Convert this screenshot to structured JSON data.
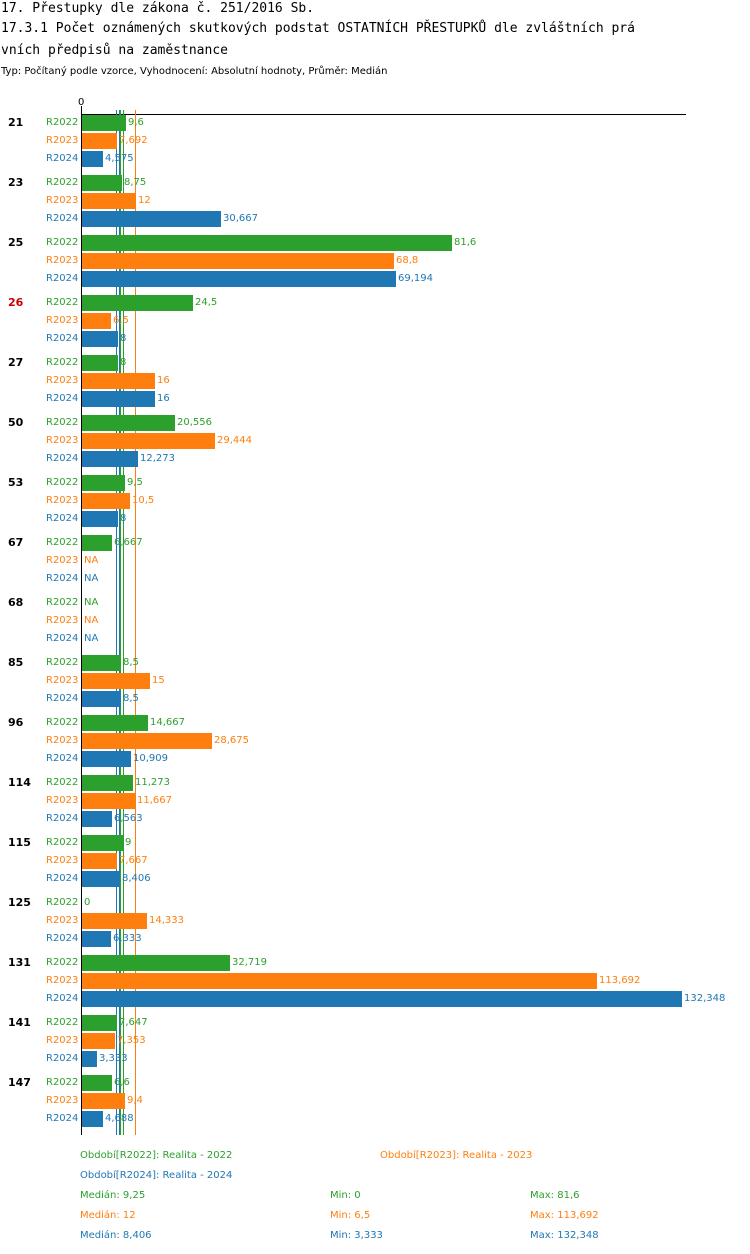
{
  "header": {
    "title1": "17. Přestupky dle zákona č. 251/2016 Sb.",
    "title2": "17.3.1 Počet oznámených skutkových podstat OSTATNÍCH PŘESTUPKŮ dle zvláštních prá",
    "title3": "vních předpisů na zaměstnance",
    "subtitle": "Typ: Počítaný podle vzorce, Vyhodnocení: Absolutní hodnoty, Průměr: Medián"
  },
  "colors": {
    "R2022": "#2ca02c",
    "R2023": "#ff7f0e",
    "R2024": "#1f77b4",
    "highlight": "#cc0000"
  },
  "chart_data": {
    "type": "bar",
    "orientation": "horizontal",
    "axis_zero_label": "0",
    "xlim": [
      0,
      132.348
    ],
    "series_names": [
      "R2022",
      "R2023",
      "R2024"
    ],
    "groups": [
      {
        "label": "21",
        "highlight": false,
        "values": [
          9.6,
          7.692,
          4.575
        ],
        "labels": [
          "9,6",
          "7,692",
          "4,575"
        ]
      },
      {
        "label": "23",
        "highlight": false,
        "values": [
          8.75,
          12,
          30.667
        ],
        "labels": [
          "8,75",
          "12",
          "30,667"
        ]
      },
      {
        "label": "25",
        "highlight": false,
        "values": [
          81.6,
          68.8,
          69.194
        ],
        "labels": [
          "81,6",
          "68,8",
          "69,194"
        ]
      },
      {
        "label": "26",
        "highlight": true,
        "values": [
          24.5,
          6.5,
          8
        ],
        "labels": [
          "24,5",
          "6,5",
          "8"
        ]
      },
      {
        "label": "27",
        "highlight": false,
        "values": [
          8,
          16,
          16
        ],
        "labels": [
          "8",
          "16",
          "16"
        ]
      },
      {
        "label": "50",
        "highlight": false,
        "values": [
          20.556,
          29.444,
          12.273
        ],
        "labels": [
          "20,556",
          "29,444",
          "12,273"
        ]
      },
      {
        "label": "53",
        "highlight": false,
        "values": [
          9.5,
          10.5,
          8
        ],
        "labels": [
          "9,5",
          "10,5",
          "8"
        ]
      },
      {
        "label": "67",
        "highlight": false,
        "values": [
          6.667,
          null,
          null
        ],
        "labels": [
          "6,667",
          "NA",
          "NA"
        ]
      },
      {
        "label": "68",
        "highlight": false,
        "values": [
          null,
          null,
          null
        ],
        "labels": [
          "NA",
          "NA",
          "NA"
        ]
      },
      {
        "label": "85",
        "highlight": false,
        "values": [
          8.5,
          15,
          8.5
        ],
        "labels": [
          "8,5",
          "15",
          "8,5"
        ]
      },
      {
        "label": "96",
        "highlight": false,
        "values": [
          14.667,
          28.675,
          10.909
        ],
        "labels": [
          "14,667",
          "28,675",
          "10,909"
        ]
      },
      {
        "label": "114",
        "highlight": false,
        "values": [
          11.273,
          11.667,
          6.563
        ],
        "labels": [
          "11,273",
          "11,667",
          "6,563"
        ]
      },
      {
        "label": "115",
        "highlight": false,
        "values": [
          9,
          7.667,
          8.406
        ],
        "labels": [
          "9",
          "7,667",
          "8,406"
        ]
      },
      {
        "label": "125",
        "highlight": false,
        "values": [
          0,
          14.333,
          6.333
        ],
        "labels": [
          "0",
          "14,333",
          "6,333"
        ]
      },
      {
        "label": "131",
        "highlight": false,
        "values": [
          32.719,
          113.692,
          132.348
        ],
        "labels": [
          "32,719",
          "113,692",
          "132,348"
        ]
      },
      {
        "label": "141",
        "highlight": false,
        "values": [
          7.647,
          7.353,
          3.333
        ],
        "labels": [
          "7,647",
          "7,353",
          "3,333"
        ]
      },
      {
        "label": "147",
        "highlight": false,
        "values": [
          6.6,
          9.4,
          4.688
        ],
        "labels": [
          "6,6",
          "9,4",
          "4,688"
        ]
      }
    ],
    "medians": [
      9.25,
      12,
      8.406
    ]
  },
  "legend": {
    "r2022": "Období[R2022]: Realita - 2022",
    "r2023": "Období[R2023]: Realita - 2023",
    "r2024": "Období[R2024]: Realita - 2024"
  },
  "stats": [
    {
      "median": "Medián: 9,25",
      "min": "Min: 0",
      "max": "Max: 81,6"
    },
    {
      "median": "Medián: 12",
      "min": "Min: 6,5",
      "max": "Max: 113,692"
    },
    {
      "median": "Medián: 8,406",
      "min": "Min: 3,333",
      "max": "Max: 132,348"
    }
  ]
}
